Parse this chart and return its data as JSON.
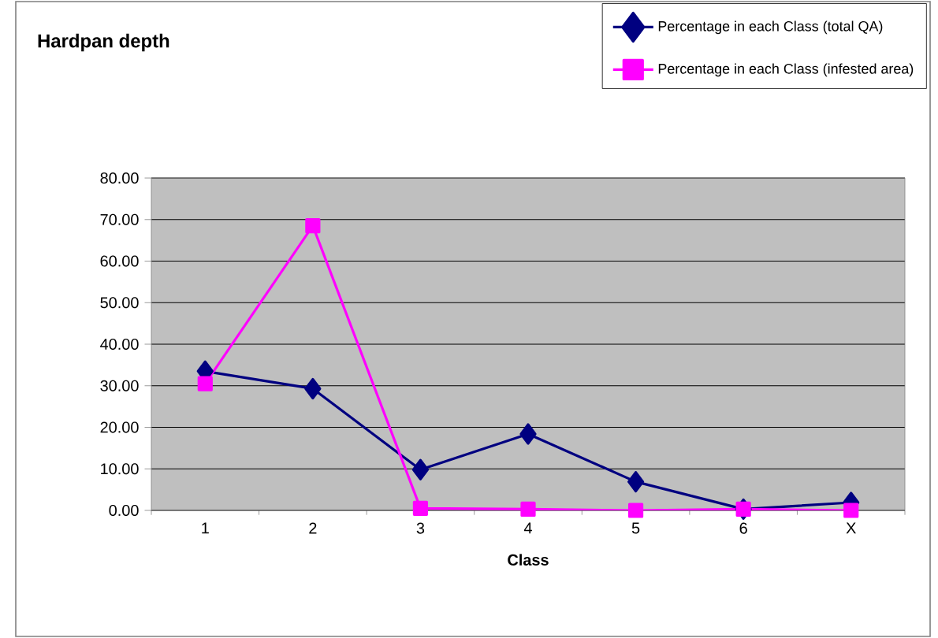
{
  "chart_data": {
    "type": "line",
    "title": "Hardpan depth",
    "xlabel": "Class",
    "categories": [
      "1",
      "2",
      "3",
      "4",
      "5",
      "6",
      "X"
    ],
    "series": [
      {
        "name": "Percentage in each Class (total QA)",
        "color": "#000080",
        "marker": "diamond",
        "values": [
          33.5,
          29.3,
          9.8,
          18.4,
          6.9,
          0.3,
          1.9
        ]
      },
      {
        "name": "Percentage in each Class (infested area)",
        "color": "#ff00ff",
        "marker": "square",
        "values": [
          30.5,
          68.5,
          0.5,
          0.3,
          0,
          0.3,
          0
        ]
      }
    ],
    "ylim": [
      0,
      80
    ],
    "yticks": [
      {
        "value": 0,
        "label": "0.00"
      },
      {
        "value": 10,
        "label": "10.00"
      },
      {
        "value": 20,
        "label": "20.00"
      },
      {
        "value": 30,
        "label": "30.00"
      },
      {
        "value": 40,
        "label": "40.00"
      },
      {
        "value": 50,
        "label": "50.00"
      },
      {
        "value": 60,
        "label": "60.00"
      },
      {
        "value": 70,
        "label": "70.00"
      },
      {
        "value": 80,
        "label": "80.00"
      }
    ],
    "grid": "y",
    "legend": "top right"
  }
}
